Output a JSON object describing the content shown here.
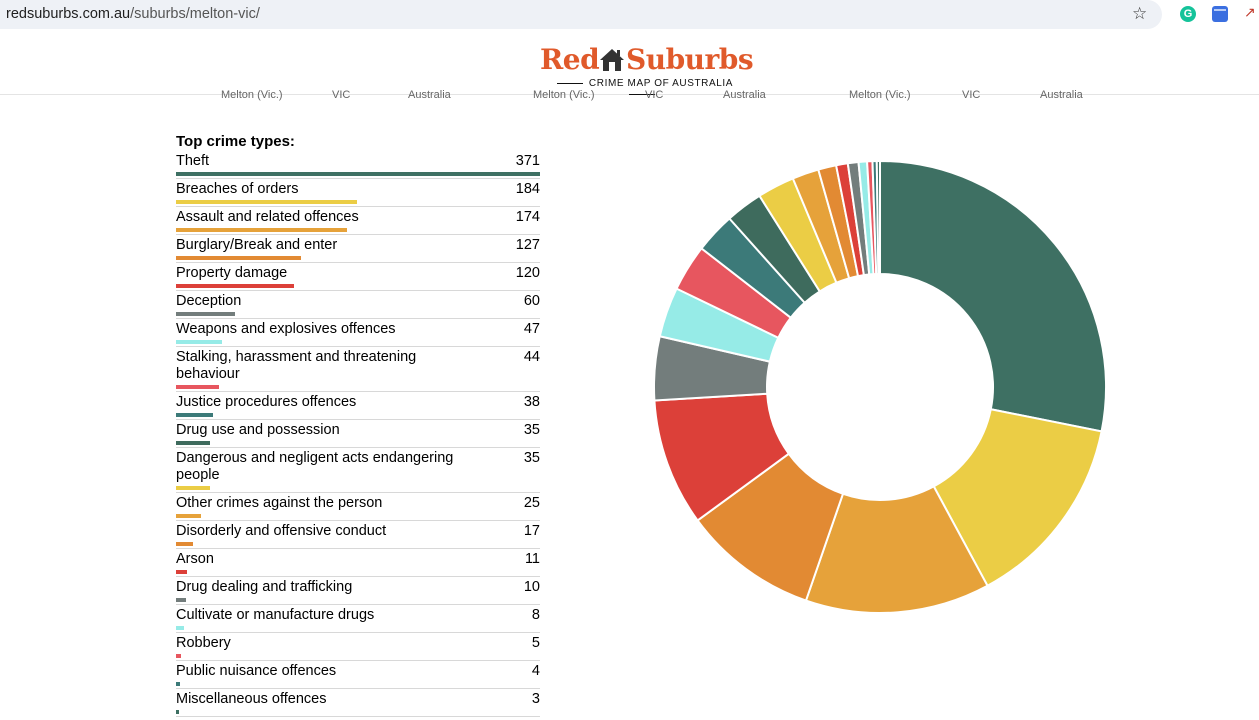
{
  "browser": {
    "url_host": "redsuburbs.com.au",
    "url_path": "/suburbs/melton-vic/",
    "star_icon": "star-icon",
    "extension_icons": [
      "grammarly-icon",
      "blue-extension-icon",
      "chart-extension-icon"
    ],
    "grammarly_letter": "G"
  },
  "logo": {
    "text_left": "Red",
    "text_right": "Suburbs",
    "tagline": "CRIME MAP OF AUSTRALIA",
    "color": "#e05a2b"
  },
  "cut_labels": [
    "Melton (Vic.)",
    "VIC",
    "Australia",
    "Melton (Vic.)",
    "VIC",
    "Australia",
    "Melton (Vic.)",
    "VIC",
    "Australia"
  ],
  "chart_data": {
    "type": "pie",
    "title": "Top crime types:",
    "categories": [
      "Theft",
      "Breaches of orders",
      "Assault and related offences",
      "Burglary/Break and enter",
      "Property damage",
      "Deception",
      "Weapons and explosives offences",
      "Stalking, harassment and threatening behaviour",
      "Justice procedures offences",
      "Drug use and possession",
      "Dangerous and negligent acts endangering people",
      "Other crimes against the person",
      "Disorderly and offensive conduct",
      "Arson",
      "Drug dealing and trafficking",
      "Cultivate or manufacture drugs",
      "Robbery",
      "Public nuisance offences",
      "Miscellaneous offences"
    ],
    "values": [
      371,
      184,
      174,
      127,
      120,
      60,
      47,
      44,
      38,
      35,
      35,
      25,
      17,
      11,
      10,
      8,
      5,
      4,
      3
    ],
    "colors": [
      "#3e7063",
      "#ebcd45",
      "#e6a23a",
      "#e28a33",
      "#dc4039",
      "#737d7c",
      "#96ebe7",
      "#e7565f",
      "#3c7a79",
      "#3e6b5d",
      "#ebcd45",
      "#e6a23a",
      "#e28a33",
      "#dc4039",
      "#737d7c",
      "#96ebe7",
      "#e7565f",
      "#3c7a79",
      "#3e7063"
    ],
    "donut": true
  }
}
